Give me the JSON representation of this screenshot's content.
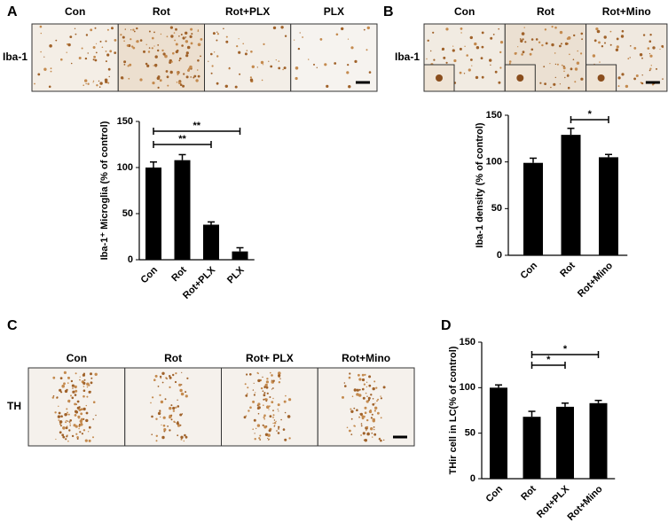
{
  "panels": [
    {
      "label": "A",
      "row_label": "Iba-1",
      "columns": [
        "Con",
        "Rot",
        "Rot+PLX",
        "PLX"
      ]
    },
    {
      "label": "B",
      "row_label": "Iba-1",
      "columns": [
        "Con",
        "Rot",
        "Rot+Mino"
      ]
    },
    {
      "label": "C",
      "row_label": "TH",
      "columns": [
        "Con",
        "Rot",
        "Rot+ PLX",
        "Rot+Mino"
      ]
    },
    {
      "label": "D"
    }
  ],
  "chart_data": [
    {
      "type": "bar",
      "y_label": "Iba-1⁺ Microglia (% of control)",
      "categories": [
        "Con",
        "Rot",
        "Rot+PLX",
        "PLX"
      ],
      "values": [
        100,
        108,
        38,
        9
      ],
      "errors": [
        6,
        6,
        3,
        4
      ],
      "color": "#000000",
      "ylim": [
        0,
        150
      ],
      "yticks": [
        0,
        50,
        100,
        150
      ],
      "significance": [
        {
          "from": 0,
          "to": 2,
          "label": "**"
        },
        {
          "from": 0,
          "to": 3,
          "label": "**"
        }
      ]
    },
    {
      "type": "bar",
      "y_label": "Iba-1 density (% of control)",
      "categories": [
        "Con",
        "Rot",
        "Rot+Mino"
      ],
      "values": [
        99,
        129,
        105
      ],
      "errors": [
        5,
        7,
        3
      ],
      "color": "#000000",
      "ylim": [
        0,
        150
      ],
      "yticks": [
        0,
        50,
        100,
        150
      ],
      "significance": [
        {
          "from": 1,
          "to": 2,
          "label": "*"
        }
      ]
    },
    {
      "type": "bar",
      "y_label": "THir cell in LC(% of control)",
      "categories": [
        "Con",
        "Rot",
        "Rot+PLX",
        "Rot+Mino"
      ],
      "values": [
        100,
        68,
        79,
        83
      ],
      "errors": [
        3,
        6,
        4,
        3
      ],
      "color": "#000000",
      "ylim": [
        0,
        150
      ],
      "yticks": [
        0,
        50,
        100,
        150
      ],
      "significance": [
        {
          "from": 1,
          "to": 2,
          "label": "*"
        },
        {
          "from": 1,
          "to": 3,
          "label": "*"
        }
      ]
    }
  ]
}
